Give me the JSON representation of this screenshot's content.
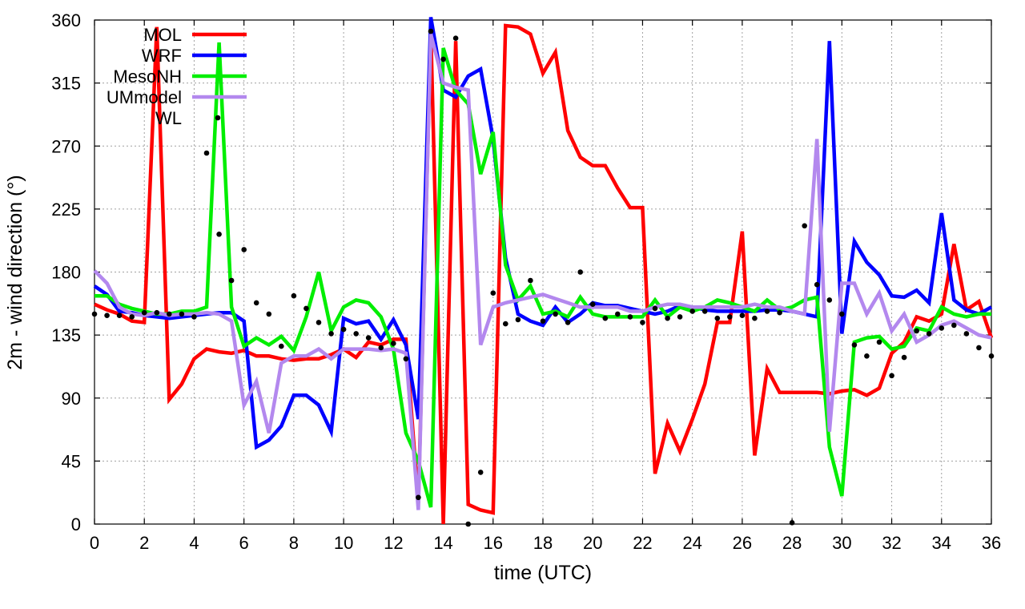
{
  "chart_data": {
    "type": "line",
    "title": "",
    "xlabel": "time (UTC)",
    "ylabel": "2m - wind direction (°)",
    "xlim": [
      0,
      36
    ],
    "ylim": [
      0,
      360
    ],
    "xticks": [
      "0",
      "2",
      "4",
      "6",
      "8",
      "10",
      "12",
      "14",
      "16",
      "18",
      "20",
      "22",
      "24",
      "26",
      "28",
      "30",
      "32",
      "34",
      "36"
    ],
    "yticks": [
      "0",
      "45",
      "90",
      "135",
      "180",
      "225",
      "270",
      "315",
      "360"
    ],
    "grid": true,
    "legend_position": "top-left",
    "series": [
      {
        "name": "MOL",
        "color": "#ff0000",
        "style": "line",
        "x": [
          0,
          0.5,
          1,
          1.5,
          2,
          2.5,
          3,
          3.5,
          4,
          4.5,
          5,
          5.5,
          6,
          6.5,
          7,
          7.5,
          8,
          8.5,
          9,
          9.5,
          10,
          10.5,
          11,
          11.5,
          12,
          12.5,
          13,
          13.5,
          14,
          14.5,
          15,
          15.5,
          16,
          16.5,
          17,
          17.5,
          18,
          18.5,
          19,
          19.5,
          20,
          20.5,
          21,
          21.5,
          22,
          22.5,
          23,
          23.5,
          24,
          24.5,
          25,
          25.5,
          26,
          26.5,
          27,
          27.5,
          28,
          28.5,
          29,
          29.5,
          30,
          30.5,
          31,
          31.5,
          32,
          32.5,
          33,
          33.5,
          34,
          34.5,
          35,
          35.5,
          36
        ],
        "values": [
          157,
          153,
          150,
          145,
          144,
          355,
          89,
          100,
          118,
          125,
          123,
          122,
          124,
          120,
          120,
          118,
          117,
          118,
          118,
          121,
          125,
          119,
          130,
          128,
          132,
          132,
          15,
          352,
          0,
          345,
          14,
          10,
          8,
          356,
          355,
          350,
          322,
          337,
          281,
          262,
          256,
          256,
          240,
          226,
          226,
          36,
          72,
          52,
          75,
          100,
          144,
          144,
          209,
          49,
          111,
          94,
          94,
          94,
          94,
          93,
          95,
          96,
          92,
          97,
          122,
          130,
          148,
          145,
          150,
          200,
          153,
          159,
          133
        ]
      },
      {
        "name": "WRF",
        "color": "#0000ff",
        "style": "line",
        "x": [
          0,
          0.5,
          1,
          1.5,
          2,
          2.5,
          3,
          3.5,
          4,
          4.5,
          5,
          5.5,
          6,
          6.5,
          7,
          7.5,
          8,
          8.5,
          9,
          9.5,
          10,
          10.5,
          11,
          11.5,
          12,
          12.5,
          13,
          13.5,
          14,
          14.5,
          15,
          15.5,
          16,
          16.5,
          17,
          17.5,
          18,
          18.5,
          19,
          19.5,
          20,
          20.5,
          21,
          21.5,
          22,
          22.5,
          23,
          23.5,
          24,
          24.5,
          25,
          25.5,
          26,
          26.5,
          27,
          27.5,
          28,
          28.5,
          29,
          29.5,
          30,
          30.5,
          31,
          31.5,
          32,
          32.5,
          33,
          33.5,
          34,
          34.5,
          35,
          35.5,
          36
        ],
        "values": [
          170,
          164,
          152,
          151,
          149,
          148,
          147,
          148,
          149,
          150,
          151,
          151,
          145,
          55,
          60,
          70,
          92,
          92,
          85,
          66,
          147,
          143,
          145,
          132,
          146,
          128,
          75,
          362,
          310,
          305,
          320,
          325,
          275,
          190,
          150,
          145,
          142,
          155,
          144,
          150,
          158,
          156,
          156,
          154,
          152,
          150,
          152,
          156,
          155,
          153,
          152,
          152,
          152,
          152,
          153,
          153,
          152,
          150,
          148,
          345,
          136,
          202,
          187,
          178,
          163,
          162,
          167,
          158,
          222,
          160,
          153,
          150,
          155
        ]
      },
      {
        "name": "MesoNH",
        "color": "#00ee00",
        "style": "line",
        "x": [
          0,
          0.5,
          1,
          1.5,
          2,
          2.5,
          3,
          3.5,
          4,
          4.5,
          5,
          5.5,
          6,
          6.5,
          7,
          7.5,
          8,
          8.5,
          9,
          9.5,
          10,
          10.5,
          11,
          11.5,
          12,
          12.5,
          13,
          13.5,
          14,
          14.5,
          15,
          15.5,
          16,
          16.5,
          17,
          17.5,
          18,
          18.5,
          19,
          19.5,
          20,
          20.5,
          21,
          21.5,
          22,
          22.5,
          23,
          23.5,
          24,
          24.5,
          25,
          25.5,
          26,
          26.5,
          27,
          27.5,
          28,
          28.5,
          29,
          29.5,
          30,
          30.5,
          31,
          31.5,
          32,
          32.5,
          33,
          33.5,
          34,
          34.5,
          35,
          35.5,
          36
        ],
        "values": [
          163,
          163,
          157,
          154,
          152,
          150,
          150,
          152,
          152,
          155,
          344,
          155,
          127,
          133,
          128,
          134,
          124,
          148,
          180,
          138,
          155,
          160,
          158,
          148,
          125,
          65,
          45,
          12,
          340,
          310,
          300,
          250,
          280,
          185,
          160,
          170,
          150,
          152,
          148,
          162,
          150,
          148,
          148,
          148,
          148,
          160,
          148,
          155,
          152,
          155,
          160,
          158,
          155,
          152,
          160,
          153,
          155,
          160,
          162,
          55,
          20,
          130,
          133,
          134,
          125,
          127,
          140,
          138,
          155,
          150,
          148,
          150,
          150
        ]
      },
      {
        "name": "UMmodel",
        "color": "#b388ee",
        "style": "line",
        "x": [
          0,
          0.5,
          1,
          1.5,
          2,
          2.5,
          3,
          3.5,
          4,
          4.5,
          5,
          5.5,
          6,
          6.5,
          7,
          7.5,
          8,
          8.5,
          9,
          9.5,
          10,
          10.5,
          11,
          11.5,
          12,
          12.5,
          13,
          13.5,
          14,
          14.5,
          15,
          15.5,
          16,
          16.5,
          17,
          17.5,
          18,
          18.5,
          19,
          19.5,
          20,
          20.5,
          21,
          21.5,
          22,
          22.5,
          23,
          23.5,
          24,
          24.5,
          25,
          25.5,
          26,
          26.5,
          27,
          27.5,
          28,
          28.5,
          29,
          29.5,
          30,
          30.5,
          31,
          31.5,
          32,
          32.5,
          33,
          33.5,
          34,
          34.5,
          35,
          35.5,
          36
        ],
        "values": [
          181,
          172,
          155,
          150,
          149,
          151,
          149,
          150,
          150,
          151,
          150,
          145,
          85,
          102,
          65,
          115,
          120,
          120,
          125,
          118,
          125,
          125,
          125,
          124,
          125,
          122,
          10,
          350,
          315,
          312,
          310,
          128,
          155,
          158,
          160,
          162,
          164,
          161,
          158,
          155,
          155,
          155,
          155,
          152,
          152,
          155,
          157,
          157,
          155,
          155,
          155,
          155,
          155,
          157,
          155,
          155,
          152,
          150,
          275,
          66,
          172,
          172,
          150,
          165,
          138,
          150,
          130,
          135,
          142,
          145,
          140,
          135,
          133
        ]
      },
      {
        "name": "WL",
        "color": "#000000",
        "style": "points",
        "x": [
          0,
          0.5,
          1,
          1.5,
          2,
          2.5,
          3,
          3.5,
          4,
          4.5,
          5,
          5.5,
          6,
          6.5,
          7,
          7.5,
          8,
          8.5,
          9,
          9.5,
          10,
          10.5,
          11,
          11.5,
          12,
          12.5,
          13,
          13.5,
          14,
          14.5,
          15,
          15.5,
          16,
          16.5,
          17,
          17.5,
          18,
          18.5,
          19,
          19.5,
          20,
          20.5,
          21,
          21.5,
          22,
          22.5,
          23,
          23.5,
          24,
          24.5,
          25,
          25.5,
          26,
          26.5,
          27,
          27.5,
          28,
          28.5,
          29,
          29.5,
          30,
          30.5,
          31,
          31.5,
          32,
          32.5,
          33,
          33.5,
          34,
          34.5,
          35,
          35.5,
          36
        ],
        "values": [
          150,
          149,
          149,
          148,
          151,
          151,
          150,
          150,
          148,
          265,
          207,
          174,
          196,
          158,
          150,
          127,
          163,
          154,
          144,
          136,
          139,
          136,
          133,
          126,
          129,
          118,
          19,
          352,
          332,
          347,
          0,
          37,
          165,
          143,
          146,
          174,
          145,
          150,
          144,
          180,
          157,
          147,
          150,
          148,
          144,
          154,
          147,
          148,
          152,
          152,
          147,
          148,
          149,
          147,
          152,
          151,
          1,
          213,
          171,
          160,
          150,
          128,
          120,
          130,
          106,
          119,
          138,
          136,
          140,
          142,
          136,
          126,
          120
        ]
      }
    ]
  }
}
